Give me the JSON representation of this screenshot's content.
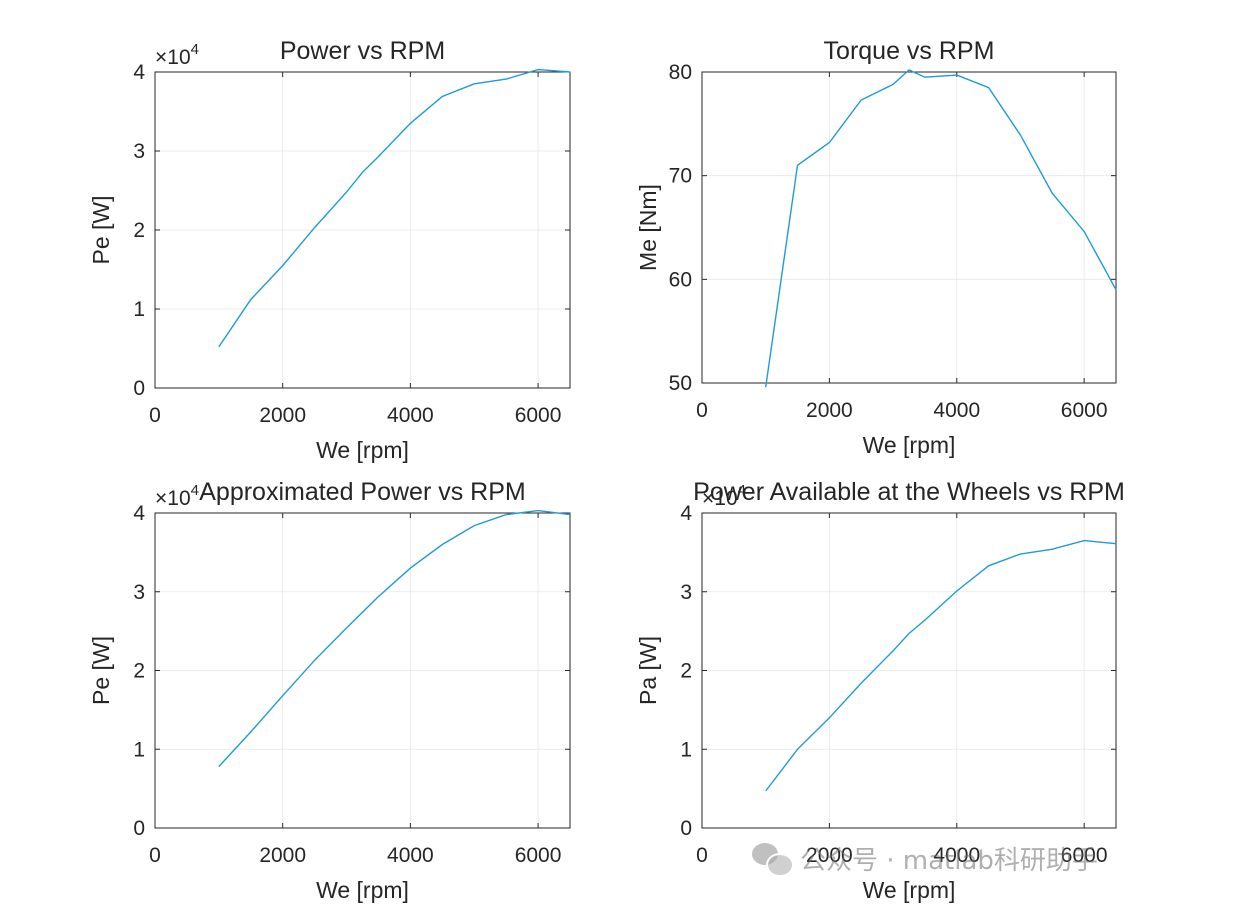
{
  "colors": {
    "line": "#1f9bd9",
    "axis": "#262626",
    "grid": "#e6e6e6"
  },
  "chart_data": [
    {
      "type": "line",
      "title": "Power vs RPM",
      "xlabel": "We [rpm]",
      "ylabel": "Pe [W]",
      "xlim": [
        0,
        6500
      ],
      "ylim": [
        0,
        40000
      ],
      "xticks": [
        0,
        2000,
        4000,
        6000
      ],
      "yticks": [
        0,
        1,
        2,
        3,
        4
      ],
      "xtick_labels": [
        "0",
        "2000",
        "4000",
        "6000"
      ],
      "ytick_labels": [
        "0",
        "1",
        "2",
        "3",
        "4"
      ],
      "y_exponent": "4",
      "y_exponent_base": "×10",
      "grid": true,
      "series": [
        {
          "x": [
            1000,
            1500,
            2000,
            2500,
            3000,
            3250,
            3500,
            4000,
            4500,
            5000,
            5500,
            6000,
            6500
          ],
          "y": [
            5200,
            11200,
            15500,
            20300,
            24800,
            27300,
            29300,
            33500,
            36900,
            38500,
            39100,
            40300,
            40000
          ]
        }
      ]
    },
    {
      "type": "line",
      "title": "Torque vs RPM",
      "xlabel": "We [rpm]",
      "ylabel": "Me [Nm]",
      "xlim": [
        0,
        6500
      ],
      "ylim": [
        50,
        80
      ],
      "xticks": [
        0,
        2000,
        4000,
        6000
      ],
      "yticks": [
        50,
        60,
        70,
        80
      ],
      "xtick_labels": [
        "0",
        "2000",
        "4000",
        "6000"
      ],
      "ytick_labels": [
        "50",
        "60",
        "70",
        "80"
      ],
      "grid": true,
      "series": [
        {
          "x": [
            1000,
            1500,
            2000,
            2500,
            3000,
            3250,
            3500,
            4000,
            4500,
            5000,
            5500,
            6000,
            6500
          ],
          "y": [
            49.6,
            71.0,
            73.2,
            77.3,
            78.8,
            80.2,
            79.5,
            79.7,
            78.5,
            73.9,
            68.3,
            64.6,
            59.0
          ]
        }
      ]
    },
    {
      "type": "line",
      "title": "Approximated Power vs RPM",
      "xlabel": "We [rpm]",
      "ylabel": "Pe [W]",
      "xlim": [
        0,
        6500
      ],
      "ylim": [
        0,
        40000
      ],
      "xticks": [
        0,
        2000,
        4000,
        6000
      ],
      "yticks": [
        0,
        1,
        2,
        3,
        4
      ],
      "xtick_labels": [
        "0",
        "2000",
        "4000",
        "6000"
      ],
      "ytick_labels": [
        "0",
        "1",
        "2",
        "3",
        "4"
      ],
      "y_exponent": "4",
      "y_exponent_base": "×10",
      "grid": true,
      "series": [
        {
          "x": [
            1000,
            1500,
            2000,
            2500,
            3000,
            3500,
            4000,
            4500,
            5000,
            5500,
            6000,
            6500
          ],
          "y": [
            7800,
            12200,
            16800,
            21300,
            25400,
            29400,
            33000,
            36000,
            38400,
            39800,
            40300,
            39800
          ]
        }
      ]
    },
    {
      "type": "line",
      "title": "Power Available at the Wheels vs RPM",
      "xlabel": "We [rpm]",
      "ylabel": "Pa [W]",
      "xlim": [
        0,
        6500
      ],
      "ylim": [
        0,
        40000
      ],
      "xticks": [
        0,
        2000,
        4000,
        6000
      ],
      "yticks": [
        0,
        1,
        2,
        3,
        4
      ],
      "xtick_labels": [
        "0",
        "2000",
        "4000",
        "6000"
      ],
      "ytick_labels": [
        "0",
        "1",
        "2",
        "3",
        "4"
      ],
      "y_exponent": "4",
      "y_exponent_base": "×10",
      "grid": true,
      "series": [
        {
          "x": [
            1000,
            1500,
            2000,
            2500,
            3000,
            3250,
            3500,
            4000,
            4500,
            5000,
            5500,
            6000,
            6500
          ],
          "y": [
            4700,
            10000,
            14000,
            18400,
            22500,
            24700,
            26400,
            30100,
            33300,
            34800,
            35400,
            36500,
            36100
          ]
        }
      ]
    }
  ],
  "watermark": {
    "text": "公众号 · matlab科研助手"
  }
}
